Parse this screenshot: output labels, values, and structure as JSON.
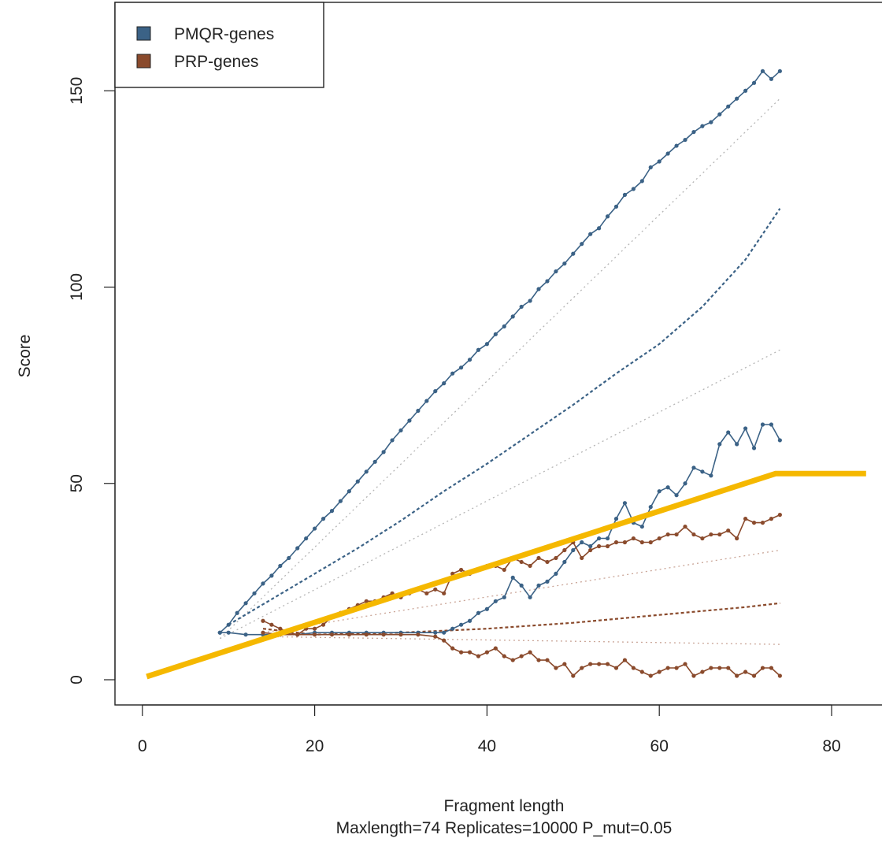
{
  "chart_data": {
    "type": "line",
    "title": "",
    "xlabel": "Fragment length",
    "subtitle": "Maxlength=74 Replicates=10000 P_mut=0.05",
    "ylabel": "Score",
    "xlim": [
      -3,
      84
    ],
    "ylim": [
      -5,
      172
    ],
    "xticks": [
      0,
      20,
      40,
      60,
      80
    ],
    "yticks": [
      0,
      50,
      100,
      150
    ],
    "legend": {
      "position": "top-left",
      "entries": [
        {
          "label": "PMQR-genes",
          "color": "#3B6286"
        },
        {
          "label": "PRP-genes",
          "color": "#8A4A2C"
        }
      ]
    },
    "colors": {
      "pmqr": "#3B6286",
      "prp": "#8A4A2C",
      "highlight": "#F5B800",
      "ref_dotted": "#bbbbbb"
    },
    "series": [
      {
        "group": "pmqr",
        "style": "solid",
        "x": [
          9,
          10,
          11,
          12,
          13,
          14,
          15,
          16,
          17,
          18,
          19,
          20,
          21,
          22,
          23,
          24,
          25,
          26,
          27,
          28,
          29,
          30,
          31,
          32,
          33,
          34,
          35,
          36,
          37,
          38,
          39,
          40,
          41,
          42,
          43,
          44,
          45,
          46,
          47,
          48,
          49,
          50,
          51,
          52,
          53,
          54,
          55,
          56,
          57,
          58,
          59,
          60,
          61,
          62,
          63,
          64,
          65,
          66,
          67,
          68,
          69,
          70,
          71,
          72,
          73,
          74
        ],
        "y": [
          12,
          14,
          17,
          19.5,
          22,
          24.5,
          26.5,
          29,
          31,
          33.5,
          36,
          38.5,
          41,
          43,
          45.5,
          48,
          50.5,
          53,
          55.5,
          58,
          61,
          63.5,
          66,
          68.5,
          71,
          73.5,
          75.5,
          78,
          79.5,
          81.5,
          84,
          85.5,
          88,
          90,
          92.5,
          95,
          96.5,
          99.5,
          101.5,
          104,
          106,
          108.5,
          111,
          113.5,
          115,
          118,
          120.5,
          123.5,
          125,
          127,
          130.5,
          132,
          134,
          136,
          137.5,
          139.5,
          141,
          142,
          144,
          146,
          148,
          150,
          152,
          155,
          153,
          155
        ]
      },
      {
        "group": "pmqr",
        "style": "dashed",
        "x": [
          10,
          15,
          20,
          25,
          30,
          35,
          40,
          45,
          50,
          55,
          60,
          65,
          70,
          74
        ],
        "y": [
          14,
          20.5,
          27,
          33.5,
          40.5,
          48,
          55,
          62.5,
          70,
          78,
          85.5,
          95,
          107,
          120
        ]
      },
      {
        "group": "pmqr",
        "style": "solid",
        "x": [
          9,
          10,
          12,
          14,
          16,
          18,
          20,
          22,
          24,
          26,
          28,
          30,
          32,
          34,
          35,
          36,
          37,
          38,
          39,
          40,
          41,
          42,
          43,
          44,
          45,
          46,
          47,
          48,
          49,
          50,
          51,
          52,
          53,
          54,
          55,
          56,
          57,
          58,
          59,
          60,
          61,
          62,
          63,
          64,
          65,
          66,
          67,
          68,
          69,
          70,
          71,
          72,
          73,
          74
        ],
        "y": [
          12,
          12,
          11.5,
          11.5,
          11.5,
          11.5,
          12,
          12,
          12,
          12,
          12,
          12,
          12,
          12,
          12,
          13,
          14,
          15,
          17,
          18,
          20,
          21,
          26,
          24,
          21,
          24,
          25,
          27,
          30,
          33,
          35,
          34,
          36,
          36,
          41,
          45,
          40,
          39,
          44,
          48,
          49,
          47,
          50,
          54,
          53,
          52,
          60,
          63,
          60,
          64,
          59,
          65,
          65,
          61
        ]
      },
      {
        "group": "prp",
        "style": "solid",
        "x": [
          14,
          15,
          16,
          17,
          18,
          19,
          20,
          21,
          22,
          23,
          24,
          25,
          26,
          27,
          28,
          29,
          30,
          31,
          32,
          33,
          34,
          35,
          36,
          37,
          38,
          39,
          40,
          41,
          42,
          43,
          44,
          45,
          46,
          47,
          48,
          49,
          50,
          51,
          52,
          53,
          54,
          55,
          56,
          57,
          58,
          59,
          60,
          61,
          62,
          63,
          64,
          65,
          66,
          67,
          68,
          69,
          70,
          71,
          72,
          73,
          74
        ],
        "y": [
          15,
          14,
          13,
          12,
          11.5,
          13,
          13,
          14,
          16,
          17,
          18,
          19,
          20,
          20,
          21,
          22,
          21,
          22,
          23,
          22,
          23,
          22,
          27,
          28,
          27,
          28,
          29,
          29,
          28,
          31,
          30,
          29,
          31,
          30,
          31,
          33,
          35,
          31,
          33,
          34,
          34,
          35,
          35,
          36,
          35,
          35,
          36,
          37,
          37,
          39,
          37,
          36,
          37,
          37,
          38,
          36,
          41,
          40,
          40,
          41,
          42
        ]
      },
      {
        "group": "prp",
        "style": "dashed",
        "x": [
          14,
          20,
          30,
          40,
          50,
          60,
          70,
          74
        ],
        "y": [
          13,
          11.5,
          12,
          13,
          14.5,
          16.5,
          18.5,
          19.5
        ]
      },
      {
        "group": "prp",
        "style": "solid",
        "x": [
          14,
          16,
          18,
          20,
          22,
          24,
          26,
          28,
          30,
          32,
          34,
          35,
          36,
          37,
          38,
          39,
          40,
          41,
          42,
          43,
          44,
          45,
          46,
          47,
          48,
          49,
          50,
          51,
          52,
          53,
          54,
          55,
          56,
          57,
          58,
          59,
          60,
          61,
          62,
          63,
          64,
          65,
          66,
          67,
          68,
          69,
          70,
          71,
          72,
          73,
          74
        ],
        "y": [
          12,
          11.5,
          11.5,
          11.5,
          11.5,
          11.5,
          11.5,
          11.5,
          11.5,
          11.5,
          11,
          10,
          8,
          7,
          7,
          6,
          7,
          8,
          6,
          5,
          6,
          7,
          5,
          5,
          3,
          4,
          1,
          3,
          4,
          4,
          4,
          3,
          5,
          3,
          2,
          1,
          2,
          3,
          3,
          4,
          1,
          2,
          3,
          3,
          3,
          1,
          2,
          1,
          3,
          3,
          1
        ]
      },
      {
        "group": "pmqr",
        "style": "dotted",
        "x": [
          9,
          74
        ],
        "y": [
          10.5,
          148
        ]
      },
      {
        "group": "pmqr",
        "style": "dotted",
        "x": [
          9,
          74
        ],
        "y": [
          10.5,
          84
        ]
      },
      {
        "group": "prp",
        "style": "dotted",
        "x": [
          14,
          74
        ],
        "y": [
          12,
          33
        ]
      },
      {
        "group": "prp",
        "style": "dotted",
        "x": [
          14,
          74
        ],
        "y": [
          11,
          9
        ]
      },
      {
        "group": "highlight",
        "style": "thick",
        "x": [
          0.5,
          73.5,
          84
        ],
        "y": [
          0.8,
          52.5,
          52.5
        ]
      }
    ]
  }
}
